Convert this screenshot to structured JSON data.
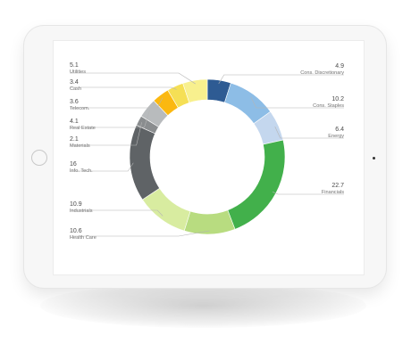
{
  "chart_data": {
    "type": "pie",
    "style": "donut",
    "legend": "callout labels",
    "slices": [
      {
        "label": "Cons. Discretionary",
        "value": 4.9,
        "color": "#2e5b93"
      },
      {
        "label": "Cons. Staples",
        "value": 10.2,
        "color": "#8dbde6"
      },
      {
        "label": "Energy",
        "value": 6.4,
        "color": "#c4d7ee"
      },
      {
        "label": "Financials",
        "value": 22.7,
        "color": "#42b04b"
      },
      {
        "label": "Health Care",
        "value": 10.6,
        "color": "#b8dc80"
      },
      {
        "label": "Industrials",
        "value": 10.9,
        "color": "#d8eca0"
      },
      {
        "label": "Info. Tech.",
        "value": 16.0,
        "color": "#5f6366"
      },
      {
        "label": "Materials",
        "value": 2.1,
        "color": "#8a8d8f"
      },
      {
        "label": "Real Estate",
        "value": 4.1,
        "color": "#b8bbbd"
      },
      {
        "label": "Telecom.",
        "value": 3.6,
        "color": "#fbb810"
      },
      {
        "label": "Cash",
        "value": 3.4,
        "color": "#f5df55"
      },
      {
        "label": "Utilities",
        "value": 5.1,
        "color": "#f8f08e"
      }
    ]
  },
  "colors": {
    "leader_line": "#b5b5b5"
  }
}
